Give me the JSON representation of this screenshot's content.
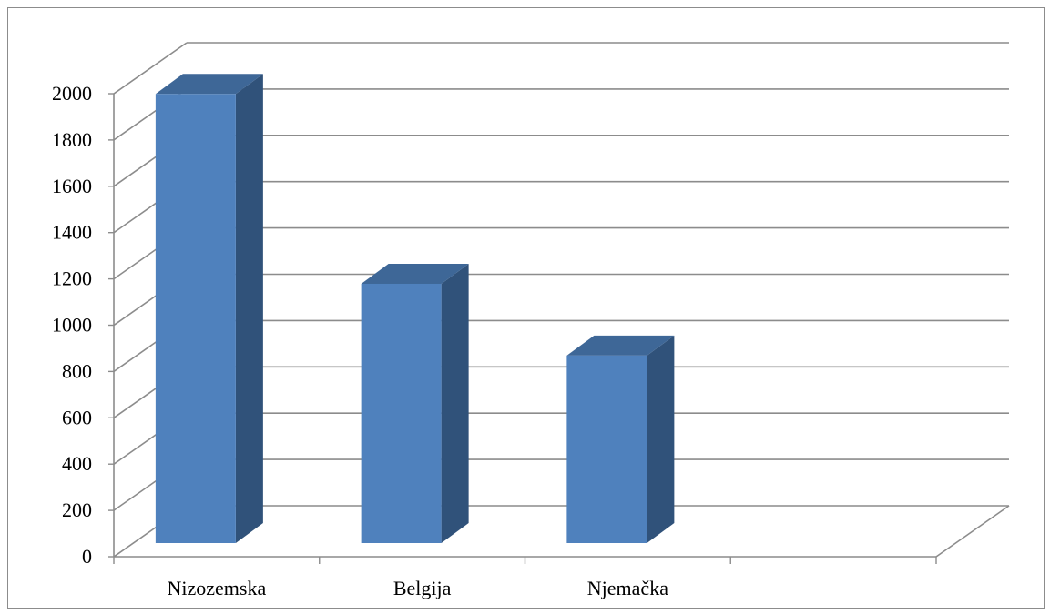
{
  "chart_data": {
    "type": "bar",
    "style": "3d-column",
    "title": "",
    "xlabel": "",
    "ylabel": "",
    "categories": [
      "Nizozemska",
      "Belgija",
      "Njemačka",
      ""
    ],
    "values": [
      1940,
      1120,
      810,
      null
    ],
    "ylim": [
      0,
      2000
    ],
    "y_ticks": [
      "0",
      "200",
      "400",
      "600",
      "800",
      "1000",
      "1200",
      "1400",
      "1600",
      "1800",
      "2000"
    ],
    "grid": true,
    "legend": "none"
  },
  "colors": {
    "bar_front": "#4f81bd",
    "bar_side": "#30527a",
    "bar_top": "#3e6797",
    "grid": "#8c8c8c",
    "axis": "#8c8c8c"
  }
}
